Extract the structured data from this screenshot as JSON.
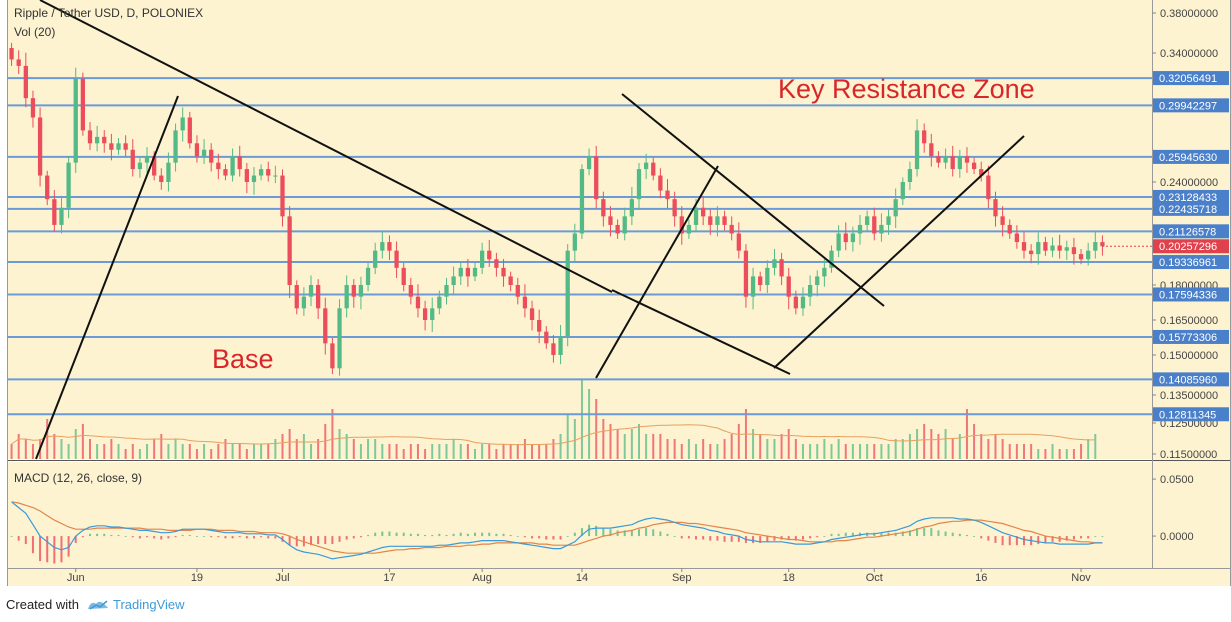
{
  "header": {
    "title": "Ripple / Tether USD, D, POLONIEX",
    "volume_label": "Vol (20)",
    "macd_label": "MACD (12, 26, close, 9)"
  },
  "annotations": {
    "key_resistance": "Key Resistance Zone",
    "base": "Base"
  },
  "footer": {
    "created_with": "Created with",
    "brand": "TradingView"
  },
  "colors": {
    "background": "#fdf3d0",
    "bull": "#53b987",
    "bear": "#eb4d5c",
    "hline": "#6a9bd8",
    "price_tag_bg": "#4a7fc9",
    "current_tag_bg": "#e0424d",
    "macd_line": "#3a9ad9",
    "signal_line": "#e2854a",
    "vol_ma": "#e6a060"
  },
  "chart_data": [
    {
      "type": "candlestick",
      "title": "Ripple / Tether USD, D, POLONIEX",
      "x_tick_labels": [
        "Jun",
        "19",
        "Jul",
        "17",
        "Aug",
        "14",
        "Sep",
        "18",
        "Oct",
        "16",
        "Nov"
      ],
      "y_tick_labels": [
        "0.38000000",
        "0.34000000",
        "0.24000000",
        "0.18000000",
        "0.16500000",
        "0.15000000",
        "0.13500000",
        "0.12500000",
        "0.11500000"
      ],
      "ylim": [
        0.114,
        0.392
      ],
      "horizontal_levels": [
        "0.32056491",
        "0.29942297",
        "0.25945630",
        "0.23128433",
        "0.22435718",
        "0.21126578",
        "0.19336961",
        "0.17594336",
        "0.15773306",
        "0.14085960",
        "0.12811345"
      ],
      "current_price": "0.20257296",
      "series": [
        {
          "name": "close",
          "values": [
            0.335,
            0.33,
            0.305,
            0.29,
            0.245,
            0.23,
            0.215,
            0.225,
            0.255,
            0.32,
            0.28,
            0.27,
            0.275,
            0.27,
            0.265,
            0.27,
            0.265,
            0.25,
            0.255,
            0.26,
            0.245,
            0.24,
            0.255,
            0.28,
            0.29,
            0.27,
            0.26,
            0.265,
            0.255,
            0.25,
            0.245,
            0.26,
            0.25,
            0.24,
            0.245,
            0.25,
            0.245,
            0.245,
            0.22,
            0.18,
            0.17,
            0.175,
            0.18,
            0.17,
            0.155,
            0.145,
            0.17,
            0.18,
            0.175,
            0.18,
            0.19,
            0.2,
            0.205,
            0.2,
            0.19,
            0.18,
            0.175,
            0.17,
            0.165,
            0.17,
            0.175,
            0.18,
            0.185,
            0.19,
            0.185,
            0.19,
            0.2,
            0.195,
            0.19,
            0.185,
            0.18,
            0.175,
            0.17,
            0.165,
            0.16,
            0.155,
            0.15,
            0.158,
            0.2,
            0.21,
            0.25,
            0.26,
            0.23,
            0.22,
            0.215,
            0.21,
            0.22,
            0.23,
            0.25,
            0.255,
            0.245,
            0.235,
            0.23,
            0.22,
            0.21,
            0.215,
            0.225,
            0.22,
            0.215,
            0.22,
            0.215,
            0.21,
            0.2,
            0.175,
            0.185,
            0.18,
            0.19,
            0.195,
            0.185,
            0.175,
            0.17,
            0.175,
            0.18,
            0.185,
            0.19,
            0.2,
            0.21,
            0.205,
            0.21,
            0.215,
            0.22,
            0.21,
            0.215,
            0.22,
            0.23,
            0.24,
            0.25,
            0.28,
            0.27,
            0.26,
            0.255,
            0.26,
            0.25,
            0.26,
            0.255,
            0.25,
            0.245,
            0.23,
            0.22,
            0.215,
            0.21,
            0.205,
            0.2,
            0.198,
            0.205,
            0.2,
            0.203,
            0.2,
            0.202,
            0.198,
            0.195,
            0.2,
            0.205,
            0.2026
          ]
        }
      ]
    },
    {
      "type": "bar",
      "title": "Vol (20)",
      "values": [
        3,
        5,
        4,
        3,
        4,
        8,
        5,
        4,
        3,
        6,
        7,
        4,
        3,
        3,
        4,
        3,
        2,
        3,
        2,
        3,
        4,
        5,
        3,
        4,
        3,
        3,
        2,
        3,
        2,
        3,
        4,
        3,
        3,
        2,
        3,
        3,
        3,
        4,
        5,
        6,
        4,
        5,
        3,
        4,
        7,
        10,
        6,
        5,
        4,
        3,
        4,
        4,
        3,
        3,
        3,
        2,
        3,
        3,
        2,
        3,
        3,
        3,
        4,
        3,
        3,
        2,
        3,
        3,
        2,
        3,
        3,
        3,
        4,
        3,
        3,
        3,
        4,
        5,
        9,
        8,
        16,
        14,
        12,
        8,
        7,
        6,
        5,
        6,
        7,
        5,
        5,
        5,
        4,
        4,
        3,
        4,
        3,
        4,
        3,
        3,
        4,
        5,
        7,
        10,
        6,
        5,
        4,
        4,
        5,
        6,
        4,
        3,
        3,
        3,
        4,
        3,
        4,
        3,
        3,
        3,
        3,
        3,
        3,
        3,
        4,
        4,
        5,
        6,
        7,
        6,
        5,
        6,
        4,
        5,
        10,
        7,
        5,
        4,
        5,
        4,
        3,
        3,
        3,
        3,
        2,
        2,
        3,
        2,
        2,
        2,
        3,
        4,
        5
      ]
    },
    {
      "type": "line",
      "title": "MACD (12, 26, close, 9)",
      "y_tick_labels": [
        "0.0500",
        "0.0000"
      ],
      "ylim": [
        -0.028,
        0.065
      ],
      "series": [
        {
          "name": "MACD",
          "values": [
            0.03,
            0.025,
            0.02,
            0.01,
            0.0,
            -0.005,
            -0.01,
            -0.012,
            -0.01,
            0.0,
            0.005,
            0.008,
            0.009,
            0.009,
            0.008,
            0.008,
            0.007,
            0.006,
            0.005,
            0.005,
            0.004,
            0.003,
            0.003,
            0.004,
            0.006,
            0.006,
            0.006,
            0.006,
            0.005,
            0.004,
            0.003,
            0.003,
            0.003,
            0.002,
            0.002,
            0.002,
            0.001,
            0.001,
            -0.003,
            -0.008,
            -0.012,
            -0.014,
            -0.015,
            -0.016,
            -0.018,
            -0.02,
            -0.019,
            -0.018,
            -0.017,
            -0.016,
            -0.014,
            -0.012,
            -0.01,
            -0.009,
            -0.009,
            -0.009,
            -0.009,
            -0.009,
            -0.009,
            -0.009,
            -0.008,
            -0.008,
            -0.007,
            -0.006,
            -0.006,
            -0.005,
            -0.004,
            -0.004,
            -0.004,
            -0.004,
            -0.005,
            -0.006,
            -0.007,
            -0.008,
            -0.009,
            -0.01,
            -0.011,
            -0.011,
            -0.008,
            -0.005,
            0.001,
            0.006,
            0.007,
            0.007,
            0.007,
            0.008,
            0.009,
            0.01,
            0.013,
            0.015,
            0.016,
            0.015,
            0.014,
            0.012,
            0.01,
            0.009,
            0.008,
            0.007,
            0.005,
            0.004,
            0.002,
            0.001,
            0.0,
            -0.003,
            -0.004,
            -0.005,
            -0.005,
            -0.005,
            -0.005,
            -0.006,
            -0.007,
            -0.007,
            -0.007,
            -0.006,
            -0.005,
            -0.003,
            -0.002,
            -0.001,
            0.0,
            0.001,
            0.002,
            0.002,
            0.003,
            0.004,
            0.005,
            0.007,
            0.009,
            0.013,
            0.015,
            0.016,
            0.016,
            0.016,
            0.016,
            0.015,
            0.015,
            0.014,
            0.012,
            0.009,
            0.006,
            0.003,
            0.001,
            -0.001,
            -0.003,
            -0.004,
            -0.005,
            -0.006,
            -0.006,
            -0.007,
            -0.007,
            -0.007,
            -0.007,
            -0.007,
            -0.006,
            -0.006
          ]
        },
        {
          "name": "Signal",
          "values": [
            0.03,
            0.029,
            0.027,
            0.025,
            0.022,
            0.018,
            0.014,
            0.011,
            0.008,
            0.006,
            0.006,
            0.006,
            0.007,
            0.007,
            0.007,
            0.007,
            0.007,
            0.007,
            0.007,
            0.006,
            0.006,
            0.006,
            0.005,
            0.005,
            0.005,
            0.005,
            0.006,
            0.006,
            0.006,
            0.005,
            0.005,
            0.005,
            0.004,
            0.004,
            0.004,
            0.003,
            0.003,
            0.003,
            0.002,
            0.0,
            -0.003,
            -0.005,
            -0.007,
            -0.009,
            -0.011,
            -0.013,
            -0.014,
            -0.015,
            -0.015,
            -0.015,
            -0.015,
            -0.015,
            -0.014,
            -0.013,
            -0.012,
            -0.012,
            -0.011,
            -0.011,
            -0.01,
            -0.01,
            -0.01,
            -0.009,
            -0.009,
            -0.009,
            -0.008,
            -0.008,
            -0.007,
            -0.007,
            -0.006,
            -0.006,
            -0.006,
            -0.006,
            -0.006,
            -0.006,
            -0.007,
            -0.007,
            -0.008,
            -0.008,
            -0.008,
            -0.008,
            -0.006,
            -0.004,
            -0.002,
            0.0,
            0.001,
            0.003,
            0.004,
            0.005,
            0.007,
            0.008,
            0.01,
            0.011,
            0.012,
            0.012,
            0.012,
            0.011,
            0.011,
            0.01,
            0.009,
            0.008,
            0.007,
            0.006,
            0.005,
            0.003,
            0.002,
            0.001,
            0.0,
            -0.001,
            -0.002,
            -0.003,
            -0.003,
            -0.004,
            -0.005,
            -0.005,
            -0.005,
            -0.005,
            -0.004,
            -0.004,
            -0.003,
            -0.002,
            -0.001,
            -0.001,
            0.0,
            0.001,
            0.002,
            0.003,
            0.004,
            0.006,
            0.008,
            0.009,
            0.011,
            0.012,
            0.013,
            0.013,
            0.014,
            0.014,
            0.014,
            0.013,
            0.012,
            0.011,
            0.009,
            0.007,
            0.005,
            0.004,
            0.002,
            0.0,
            -0.001,
            -0.002,
            -0.003,
            -0.004,
            -0.005,
            -0.005,
            -0.006,
            -0.006
          ]
        }
      ]
    }
  ]
}
